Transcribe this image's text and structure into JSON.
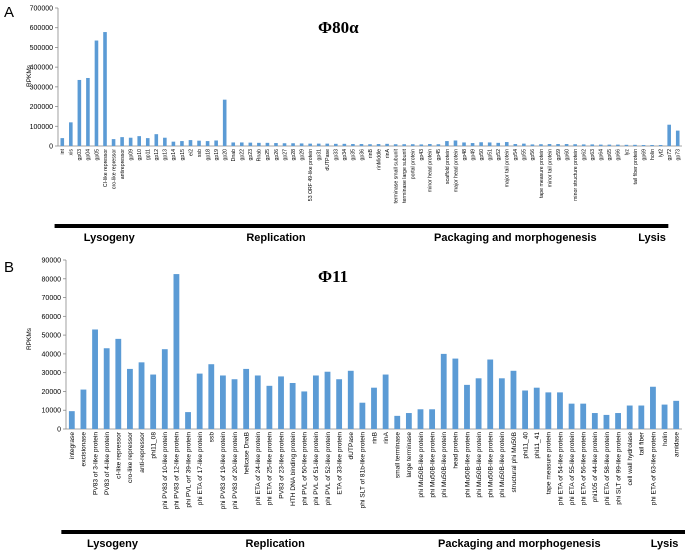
{
  "chart_data": [
    {
      "type": "bar",
      "panel_label": "A",
      "title": "Φ80α",
      "ylabel": "RPKMs",
      "ylim": [
        0,
        700000
      ],
      "yticks": [
        0,
        100000,
        200000,
        300000,
        400000,
        500000,
        600000,
        700000
      ],
      "color": "#5b9bd5",
      "categories": [
        "int",
        "xis",
        "gp03",
        "gp04",
        "gp05",
        "CI-like repressor",
        "cro-like repressor",
        "antirepressor",
        "gp09",
        "gp10",
        "gp11",
        "gp12",
        "gp13",
        "gp14",
        "gp15",
        "ei2",
        "ssb",
        "gp18",
        "gp19",
        "gp20",
        "Dnab",
        "gp22",
        "gp23",
        "Rnab",
        "gp25",
        "gp26",
        "gp27",
        "gp28",
        "gp29",
        "53 ORF 49-like protein",
        "gp31",
        "dUTPase",
        "gp33",
        "gp34",
        "gp35",
        "gp36",
        "rinB",
        "rinMiddle",
        "rinA",
        "terminase small subunit",
        "terminase large subunit",
        "portal protein",
        "gp43",
        "minor head protein",
        "gp45",
        "scaffold protein",
        "major head protein",
        "gp48",
        "gp49",
        "gp50",
        "gp51",
        "gp52",
        "major tail protein",
        "gp54",
        "gp55",
        "gp56",
        "tape measure protein",
        "minor tail protein",
        "gp59",
        "gp60",
        "minor structure protein",
        "gp62",
        "gp63",
        "gp64",
        "gp65",
        "gp66",
        "lyz",
        "tail fiber protein",
        "gp69",
        "holin",
        "lyt2",
        "gp72",
        "gp73"
      ],
      "values": [
        40000,
        120000,
        335000,
        345000,
        535000,
        578000,
        35000,
        45000,
        42000,
        50000,
        40000,
        60000,
        42000,
        22000,
        25000,
        30000,
        27000,
        25000,
        28000,
        235000,
        18000,
        18000,
        17000,
        16000,
        16000,
        15000,
        14000,
        14000,
        13000,
        12000,
        12000,
        12000,
        11000,
        11000,
        10000,
        10000,
        9000,
        10000,
        11000,
        9000,
        9000,
        9000,
        8000,
        10000,
        9000,
        25000,
        28000,
        18000,
        15000,
        19000,
        18000,
        16000,
        20000,
        10000,
        12000,
        8000,
        9000,
        10000,
        10000,
        10000,
        9000,
        8000,
        8000,
        7000,
        7000,
        7000,
        6000,
        6000,
        5000,
        5000,
        5000,
        108000,
        78000
      ],
      "groups": [
        {
          "label": "Lysogeny",
          "from": 0,
          "to": 11
        },
        {
          "label": "Replication",
          "from": 12,
          "to": 38
        },
        {
          "label": "Packaging and morphogenesis",
          "from": 39,
          "to": 67
        },
        {
          "label": "Lysis",
          "from": 68,
          "to": 70
        }
      ]
    },
    {
      "type": "bar",
      "panel_label": "B",
      "title": "Φ11",
      "ylabel": "RPKMs",
      "ylim": [
        0,
        90000
      ],
      "yticks": [
        0,
        10000,
        20000,
        30000,
        40000,
        50000,
        60000,
        70000,
        80000,
        90000
      ],
      "color": "#5b9bd5",
      "categories": [
        "integrase",
        "excisionase",
        "PV83 of 3-like protein",
        "PV83 of 4-like protein",
        "cI-like repressor",
        "cro-like repressor",
        "anti-repressor",
        "phi11_08",
        "phi PV83 of 10-like protein",
        "phi PV83 of 12-like protein",
        "phi PVL orf 39-like protein",
        "phi ETA of 17-like protein",
        "ssb",
        "phi PV83 of 19-like protein",
        "phi PV83 of 20-like protein",
        "helicase DnaB",
        "phi ETA of 24-like protein",
        "phi ETA of 25-like protein",
        "PV83 of 23-like protein",
        "HTH DNA binding protein",
        "phi PVL of 50-like protein",
        "phi PVL of 51-like protein",
        "phi PVL of 52-like protein",
        "ETA of 33-like protein",
        "dUTPase",
        "phi SLT of 81b-like protein",
        "rinB",
        "rinA",
        "small terminase",
        "large terminase",
        "phi Mu50B-like protein",
        "phi Mu50B-like protein",
        "phi Mu50B-like protein",
        "head protein",
        "phi Mu50B-like protein",
        "phi Mu50B-like protein",
        "phi Mu50B-like protein",
        "phi Mu50B-like protein",
        "structural phi Mu50B",
        "phi11_40",
        "phi11_41",
        "tape measure protein",
        "phi ETA of 54-like protein",
        "phi ETA of 55-like protein",
        "phi ETA of 56-like protein",
        "phi105 of 44-like protein",
        "phi ETA of 58-like protein",
        "phi SLT of 99-like protein",
        "cell wall hydrolase",
        "tail fiber",
        "phi ETA of 63-like protein",
        "holin",
        "amidase"
      ],
      "values": [
        9500,
        21000,
        53000,
        43000,
        48000,
        32000,
        35500,
        29000,
        42500,
        82500,
        9000,
        29500,
        34500,
        28500,
        26500,
        32000,
        28500,
        23000,
        28000,
        24500,
        20000,
        28500,
        30500,
        26500,
        31000,
        14000,
        22000,
        29000,
        7000,
        8500,
        10500,
        10500,
        40000,
        37500,
        23500,
        27000,
        37000,
        27000,
        31000,
        20500,
        22000,
        19500,
        19500,
        13500,
        13500,
        8500,
        7500,
        8500,
        12500,
        12500,
        22500,
        13000,
        15000
      ],
      "groups": [
        {
          "label": "Lysogeny",
          "from": 0,
          "to": 7
        },
        {
          "label": "Replication",
          "from": 8,
          "to": 27
        },
        {
          "label": "Packaging and morphogenesis",
          "from": 28,
          "to": 49
        },
        {
          "label": "Lysis",
          "from": 50,
          "to": 52
        }
      ]
    }
  ]
}
